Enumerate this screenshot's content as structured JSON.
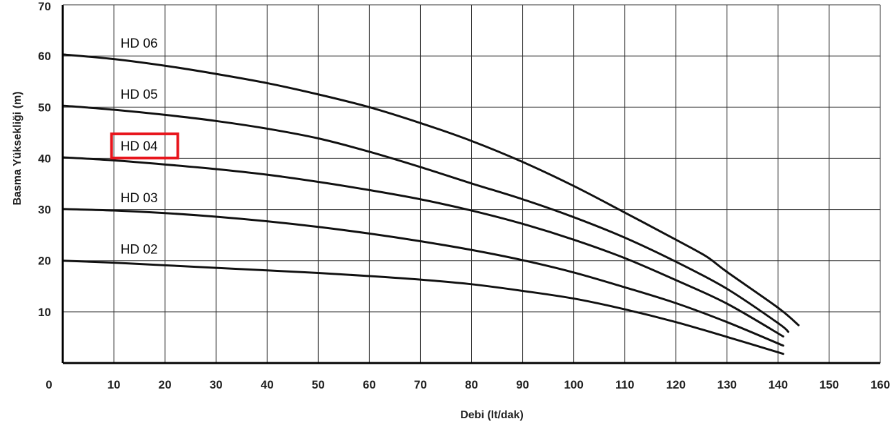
{
  "chart_data": {
    "type": "line",
    "title": "",
    "xlabel": "Debi (lt/dak)",
    "ylabel": "Basma Yüksekliği (m)",
    "xlim": [
      0,
      160
    ],
    "ylim": [
      0,
      70
    ],
    "grid": true,
    "x_ticks": [
      "0",
      "10",
      "20",
      "30",
      "40",
      "50",
      "60",
      "70",
      "80",
      "90",
      "100",
      "110",
      "120",
      "130",
      "140",
      "150",
      "160"
    ],
    "y_ticks": [
      "10",
      "20",
      "30",
      "40",
      "50",
      "60",
      "70"
    ],
    "series": [
      {
        "name": "HD 06",
        "x": [
          0,
          10,
          20,
          30,
          40,
          50,
          60,
          70,
          80,
          90,
          100,
          110,
          120,
          126,
          130,
          140,
          144
        ],
        "values": [
          60.3,
          59.4,
          58.1,
          56.5,
          54.7,
          52.5,
          50.0,
          46.9,
          43.4,
          39.3,
          34.6,
          29.4,
          24.1,
          20.8,
          17.8,
          10.8,
          7.4
        ]
      },
      {
        "name": "HD 05",
        "x": [
          0,
          10,
          20,
          30,
          40,
          50,
          60,
          70,
          80,
          90,
          100,
          110,
          120,
          130,
          140,
          142
        ],
        "values": [
          50.3,
          49.5,
          48.5,
          47.3,
          45.8,
          43.9,
          41.3,
          38.3,
          35.1,
          32.0,
          28.5,
          24.5,
          19.8,
          14.5,
          7.8,
          6.1
        ]
      },
      {
        "name": "HD 04",
        "x": [
          0,
          10,
          20,
          30,
          40,
          50,
          60,
          70,
          80,
          90,
          100,
          110,
          120,
          130,
          141
        ],
        "values": [
          40.2,
          39.6,
          38.8,
          37.9,
          36.8,
          35.4,
          33.8,
          32.0,
          29.8,
          27.2,
          24.1,
          20.5,
          16.2,
          11.6,
          5.2
        ]
      },
      {
        "name": "HD 03",
        "x": [
          0,
          10,
          20,
          30,
          40,
          50,
          60,
          70,
          80,
          90,
          100,
          110,
          120,
          130,
          141
        ],
        "values": [
          30.1,
          29.8,
          29.3,
          28.6,
          27.7,
          26.6,
          25.3,
          23.8,
          22.1,
          20.1,
          17.7,
          14.8,
          11.7,
          8.0,
          3.4
        ]
      },
      {
        "name": "HD 02",
        "x": [
          0,
          10,
          20,
          30,
          40,
          50,
          60,
          70,
          80,
          90,
          100,
          110,
          120,
          130,
          141
        ],
        "values": [
          20.0,
          19.6,
          19.1,
          18.6,
          18.1,
          17.6,
          17.0,
          16.3,
          15.4,
          14.1,
          12.6,
          10.5,
          8.0,
          5.1,
          1.8
        ]
      }
    ],
    "highlight": {
      "series": "HD 04",
      "color": "#e8141b"
    },
    "line_color": "#111111",
    "grid_color": "#333333"
  }
}
